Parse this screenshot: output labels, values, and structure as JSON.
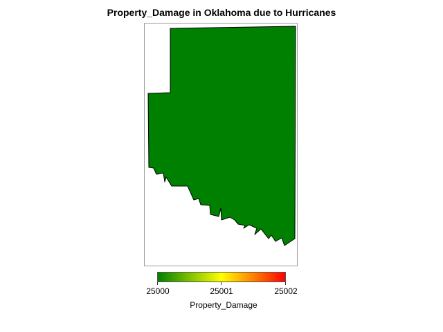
{
  "title": "Property_Damage in Oklahoma due to Hurricanes",
  "legend": {
    "title": "Property_Damage",
    "colors": [
      "#008000",
      "#ffff00",
      "#ff0000"
    ],
    "tick_labels": [
      "25000",
      "25001",
      "25002"
    ]
  },
  "chart_data": {
    "type": "heatmap",
    "title": "Property_Damage in Oklahoma due to Hurricanes",
    "regions": [
      {
        "name": "Oklahoma",
        "value": 25000,
        "color": "#008000"
      }
    ],
    "color_scale": {
      "min": 25000,
      "max": 25002,
      "stops": [
        "#008000",
        "#ffff00",
        "#ff0000"
      ],
      "label": "Property_Damage",
      "ticks": [
        25000,
        25001,
        25002
      ]
    }
  }
}
